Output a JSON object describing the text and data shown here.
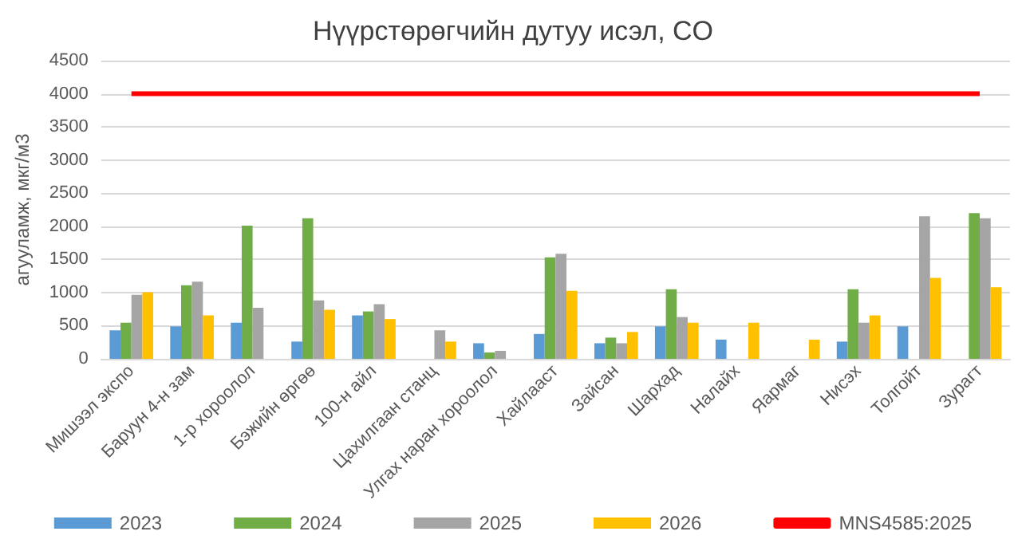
{
  "chart_data": {
    "type": "bar",
    "title": "Нүүрстөрөгчийн дутуу исэл, CO",
    "ylabel": "агууламж, мкг/м3",
    "categories": [
      "Мишээл экспо",
      "Баруун 4-н зам",
      "1-р хороолол",
      "Бэжийн өргөө",
      "100-н айл",
      "Цахилгаан станц",
      "Улгах наран хороолол",
      "Хайлааст",
      "Зайсан",
      "Шархад",
      "Налайх",
      "Яармаг",
      "Нисэх",
      "Толгойт",
      "Зурагт"
    ],
    "series": [
      {
        "name": "2023",
        "color": "#5b9bd5",
        "values": [
          430,
          490,
          545,
          260,
          655,
          null,
          235,
          375,
          235,
          490,
          290,
          null,
          260,
          490,
          null
        ]
      },
      {
        "name": "2024",
        "color": "#70ad47",
        "values": [
          545,
          1110,
          2010,
          2120,
          715,
          null,
          95,
          1530,
          320,
          1050,
          null,
          null,
          1050,
          null,
          2200
        ]
      },
      {
        "name": "2025",
        "color": "#a5a5a5",
        "values": [
          965,
          1165,
          770,
          880,
          825,
          430,
          120,
          1585,
          235,
          630,
          null,
          null,
          545,
          2150,
          2120
        ]
      },
      {
        "name": "2026",
        "color": "#ffc000",
        "values": [
          1005,
          655,
          null,
          740,
          600,
          260,
          null,
          1025,
          405,
          545,
          545,
          290,
          655,
          1220,
          1080
        ]
      },
      {
        "name": "MNS4585:2025",
        "type": "line",
        "color": "#ff0000",
        "values": [
          4000,
          4000,
          4000,
          4000,
          4000,
          4000,
          4000,
          4000,
          4000,
          4000,
          4000,
          4000,
          4000,
          4000,
          4000
        ]
      }
    ],
    "ylim": [
      0,
      4500
    ],
    "yticks": [
      0,
      500,
      1000,
      1500,
      2000,
      2500,
      3000,
      3500,
      4000,
      4500
    ],
    "grid": "y",
    "legend": "bottom",
    "marker": "none"
  }
}
